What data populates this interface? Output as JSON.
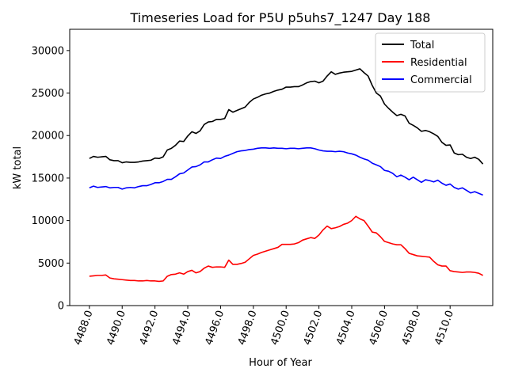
{
  "chart_data": {
    "type": "line",
    "title": "Timeseries Load for P5U p5uhs7_1247  Day 188",
    "xlabel": "Hour of Year",
    "ylabel": "kW total",
    "xlim": [
      4486.8,
      4512.6
    ],
    "ylim": [
      0,
      32500
    ],
    "x_ticks": [
      4488.0,
      4490.0,
      4492.0,
      4494.0,
      4496.0,
      4498.0,
      4500.0,
      4502.0,
      4504.0,
      4506.0,
      4508.0,
      4510.0
    ],
    "x_tick_labels": [
      "4488.0",
      "4490.0",
      "4492.0",
      "4494.0",
      "4496.0",
      "4498.0",
      "4500.0",
      "4502.0",
      "4504.0",
      "4506.0",
      "4508.0",
      "4510.0"
    ],
    "y_ticks": [
      0,
      5000,
      10000,
      15000,
      20000,
      25000,
      30000
    ],
    "y_tick_labels": [
      "0",
      "5000",
      "10000",
      "15000",
      "20000",
      "25000",
      "30000"
    ],
    "legend_position": "top-right",
    "x_start": 4488.0,
    "x_step": 0.25,
    "series": [
      {
        "name": "Total",
        "color": "#000000",
        "values": [
          17300,
          17550,
          17450,
          17500,
          17550,
          17150,
          17050,
          17050,
          16800,
          16900,
          16850,
          16850,
          16900,
          17000,
          17050,
          17100,
          17350,
          17300,
          17500,
          18300,
          18500,
          18850,
          19350,
          19300,
          19950,
          20450,
          20250,
          20550,
          21300,
          21600,
          21650,
          21900,
          21900,
          22000,
          23050,
          22750,
          22950,
          23150,
          23350,
          23900,
          24300,
          24500,
          24750,
          24900,
          25000,
          25200,
          25350,
          25450,
          25700,
          25700,
          25750,
          25750,
          25950,
          26200,
          26350,
          26400,
          26200,
          26400,
          27000,
          27500,
          27200,
          27350,
          27450,
          27500,
          27550,
          27700,
          27850,
          27400,
          27000,
          25900,
          25000,
          24650,
          23700,
          23200,
          22750,
          22350,
          22500,
          22300,
          21450,
          21200,
          20900,
          20500,
          20600,
          20450,
          20200,
          19900,
          19200,
          18850,
          18900,
          17950,
          17750,
          17800,
          17450,
          17300,
          17450,
          17200,
          16650
        ]
      },
      {
        "name": "Residential",
        "color": "#ff0000",
        "values": [
          3450,
          3500,
          3550,
          3550,
          3600,
          3250,
          3150,
          3100,
          3050,
          3000,
          2950,
          2950,
          2900,
          2900,
          2950,
          2900,
          2900,
          2850,
          2900,
          3450,
          3650,
          3700,
          3850,
          3700,
          4000,
          4150,
          3850,
          4000,
          4400,
          4650,
          4500,
          4550,
          4550,
          4500,
          5350,
          4850,
          4850,
          4950,
          5100,
          5500,
          5900,
          6050,
          6250,
          6400,
          6550,
          6700,
          6850,
          7200,
          7200,
          7200,
          7250,
          7400,
          7700,
          7850,
          8000,
          7900,
          8300,
          8900,
          9350,
          9050,
          9150,
          9300,
          9550,
          9700,
          10000,
          10500,
          10200,
          10000,
          9350,
          8650,
          8550,
          8100,
          7550,
          7400,
          7250,
          7150,
          7150,
          6700,
          6150,
          6000,
          5850,
          5800,
          5750,
          5700,
          5200,
          4800,
          4650,
          4650,
          4100,
          4000,
          3950,
          3900,
          3950,
          3950,
          3900,
          3800,
          3550
        ]
      },
      {
        "name": "Commercial",
        "color": "#0000ff",
        "values": [
          13850,
          14050,
          13900,
          13950,
          14000,
          13850,
          13900,
          13900,
          13700,
          13850,
          13900,
          13850,
          14000,
          14100,
          14100,
          14250,
          14450,
          14450,
          14600,
          14850,
          14850,
          15150,
          15500,
          15600,
          15950,
          16300,
          16350,
          16550,
          16900,
          16900,
          17150,
          17350,
          17300,
          17550,
          17700,
          17900,
          18100,
          18200,
          18250,
          18350,
          18400,
          18500,
          18550,
          18550,
          18500,
          18550,
          18500,
          18500,
          18450,
          18500,
          18500,
          18450,
          18500,
          18550,
          18550,
          18450,
          18300,
          18200,
          18150,
          18150,
          18100,
          18150,
          18100,
          17950,
          17850,
          17700,
          17450,
          17250,
          17100,
          16750,
          16550,
          16350,
          15900,
          15800,
          15550,
          15150,
          15350,
          15100,
          14800,
          15100,
          14800,
          14500,
          14800,
          14700,
          14550,
          14750,
          14400,
          14150,
          14300,
          13900,
          13700,
          13850,
          13550,
          13250,
          13400,
          13200,
          13000
        ]
      }
    ]
  }
}
